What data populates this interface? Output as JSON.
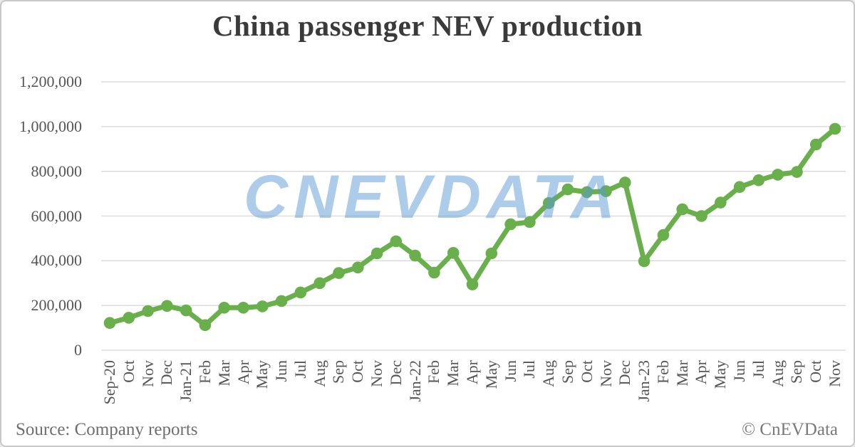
{
  "title": "China passenger NEV production",
  "watermark": {
    "text": "CNEVDATA"
  },
  "footer": {
    "source": "Source: Company reports",
    "copyright": "© CnEVData"
  },
  "colors": {
    "series": "#69AF4B",
    "grid": "#D8D8D8",
    "axis_text": "#555555",
    "title_text": "#3A3A3A",
    "footer_text": "#6E6E6E",
    "watermark": "#5B9BD5",
    "border": "#C9C9C9",
    "background": "#FFFFFF"
  },
  "chart_data": {
    "type": "line",
    "title": "China passenger NEV production",
    "xlabel": "",
    "ylabel": "",
    "ylim": [
      0,
      1200000
    ],
    "ytick_step": 200000,
    "yticks": [
      "0",
      "200,000",
      "400,000",
      "600,000",
      "800,000",
      "1,000,000",
      "1,200,000"
    ],
    "grid": "horizontal",
    "legend": "none",
    "marker": "circle",
    "categories": [
      "Sep-20",
      "Oct",
      "Nov",
      "Dec",
      "Jan-21",
      "Feb",
      "Mar",
      "Apr",
      "May",
      "Jun",
      "Jul",
      "Aug",
      "Sep",
      "Oct",
      "Nov",
      "Dec",
      "Jan-22",
      "Feb",
      "Mar",
      "Apr",
      "May",
      "Jun",
      "Jul",
      "Aug",
      "Sep",
      "Oct",
      "Nov",
      "Dec",
      "Jan-23",
      "Feb",
      "Mar",
      "Apr",
      "May",
      "Jun",
      "Jul",
      "Aug",
      "Sep",
      "Oct",
      "Nov"
    ],
    "series": [
      {
        "name": "China passenger NEV production",
        "values": [
          122000,
          145000,
          175000,
          198000,
          178000,
          112000,
          190000,
          190000,
          196000,
          220000,
          258000,
          300000,
          345000,
          370000,
          433000,
          487000,
          423000,
          347000,
          435000,
          294000,
          433000,
          563000,
          573000,
          658000,
          719000,
          707000,
          711000,
          750000,
          398000,
          515000,
          630000,
          600000,
          660000,
          730000,
          760000,
          785000,
          797000,
          920000,
          990000
        ]
      }
    ]
  }
}
